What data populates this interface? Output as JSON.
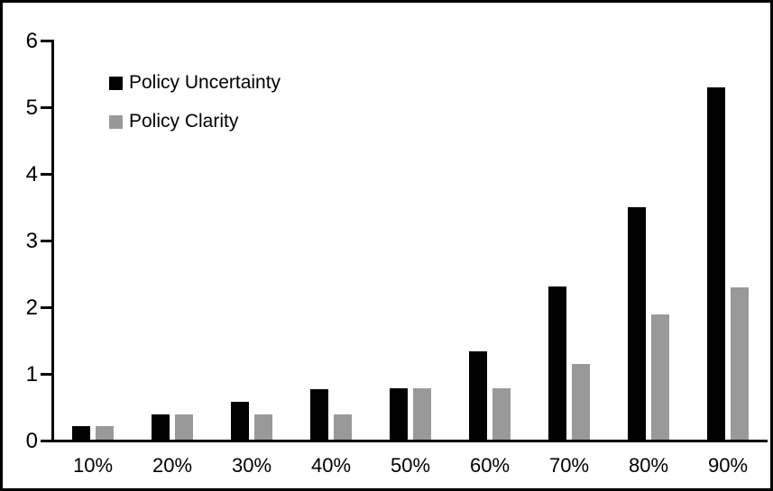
{
  "chart_data": {
    "type": "bar",
    "title": "",
    "xlabel": "",
    "ylabel": "",
    "categories": [
      "10%",
      "20%",
      "30%",
      "40%",
      "50%",
      "60%",
      "70%",
      "80%",
      "90%"
    ],
    "series": [
      {
        "name": "Policy Uncertainty",
        "color": "#000000",
        "values": [
          0.2,
          0.38,
          0.57,
          0.76,
          0.77,
          1.33,
          2.3,
          3.48,
          5.28
        ]
      },
      {
        "name": "Policy Clarity",
        "color": "#999999",
        "values": [
          0.2,
          0.38,
          0.38,
          0.38,
          0.77,
          0.77,
          1.14,
          1.88,
          2.28
        ]
      }
    ],
    "ylim": [
      0,
      6
    ],
    "y_ticks": [
      "0",
      "1",
      "2",
      "3",
      "4",
      "5",
      "6"
    ],
    "grid": false,
    "legend_position": "top-left",
    "plot_background": "#ffffff",
    "frame_color": "#000000"
  }
}
